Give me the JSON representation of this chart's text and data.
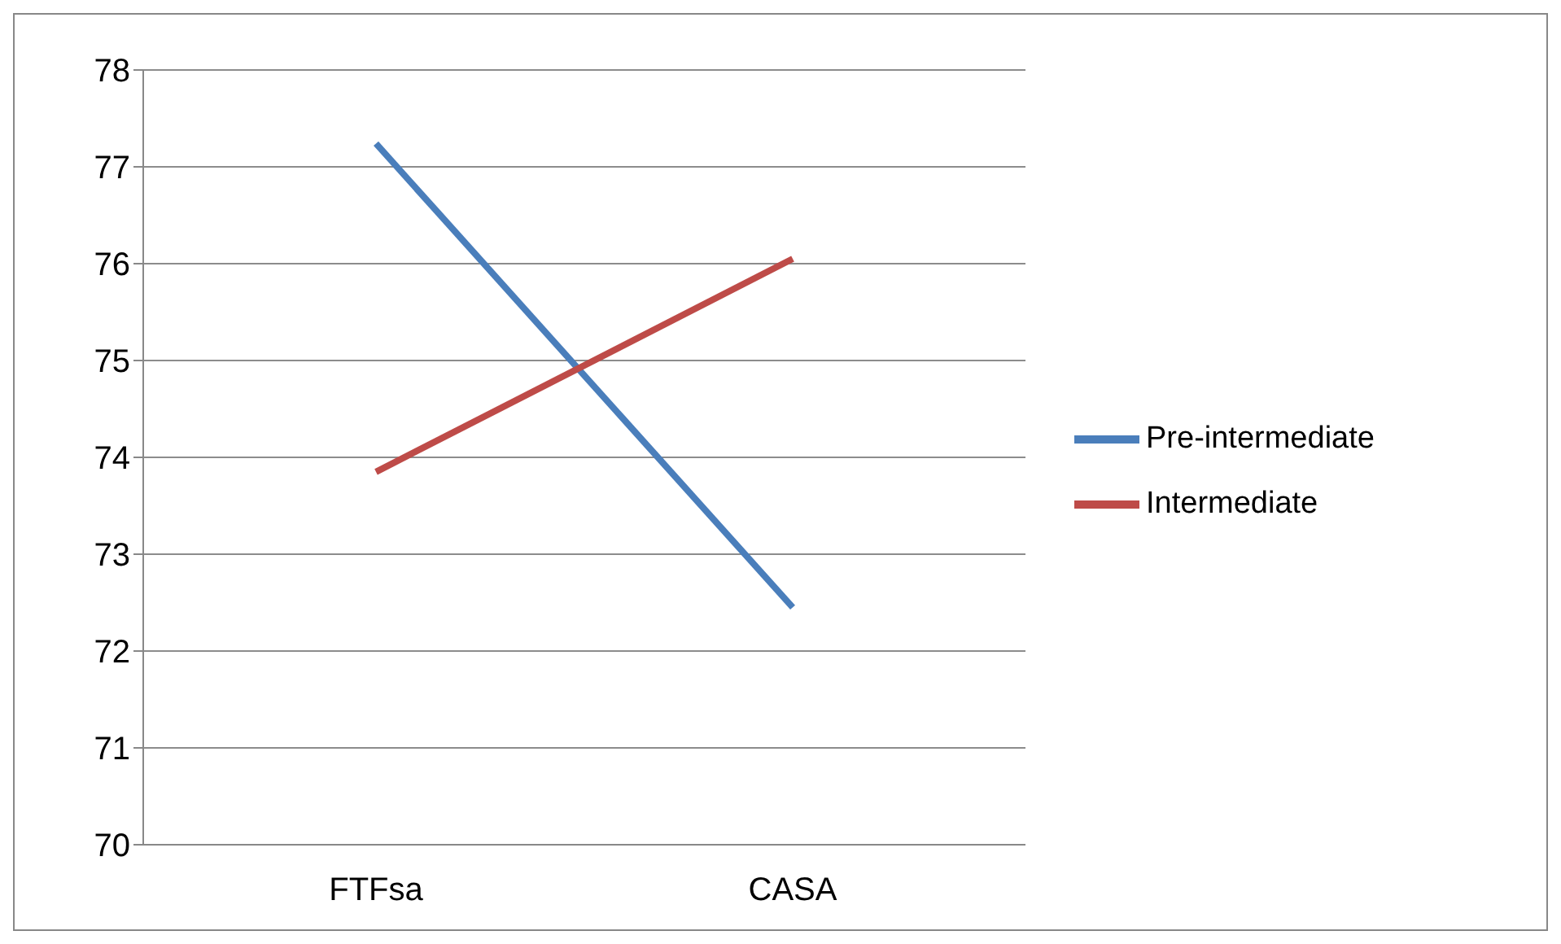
{
  "chart_data": {
    "type": "line",
    "categories": [
      "FTFsa",
      "CASA"
    ],
    "series": [
      {
        "name": "Pre-intermediate",
        "color": "#4a7ebb",
        "values": [
          77.24,
          72.45
        ]
      },
      {
        "name": "Intermediate",
        "color": "#be4b48",
        "values": [
          73.85,
          76.05
        ]
      }
    ],
    "ylim": [
      70,
      78
    ],
    "yticks": [
      70,
      71,
      72,
      73,
      74,
      75,
      76,
      77,
      78
    ],
    "grid": "y",
    "legend": "right",
    "marker": "none",
    "line_style": "solid"
  }
}
